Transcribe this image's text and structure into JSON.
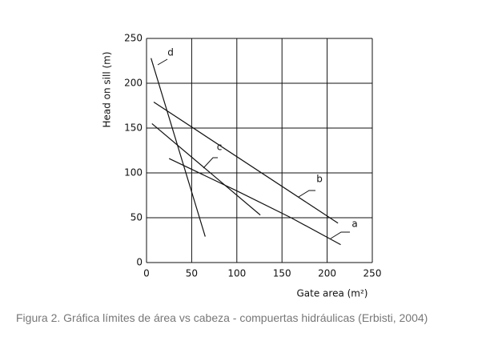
{
  "chart_data": {
    "type": "line",
    "xlabel": "Gate area (m²)",
    "ylabel": "Head on sill (m)",
    "xlim": [
      0,
      250
    ],
    "xticks": [
      0,
      50,
      100,
      150,
      200,
      250
    ],
    "ylim": [
      0,
      250
    ],
    "yticks": [
      0,
      50,
      100,
      150,
      200,
      250
    ],
    "grid": true,
    "color": "#111111",
    "series": [
      {
        "name": "d",
        "x": [
          5,
          65
        ],
        "values": [
          228,
          29
        ]
      },
      {
        "name": "c",
        "x": [
          6,
          126
        ],
        "values": [
          155,
          53
        ]
      },
      {
        "name": "b",
        "x": [
          8,
          212
        ],
        "values": [
          179,
          44
        ]
      },
      {
        "name": "a",
        "x": [
          25,
          100,
          160,
          215
        ],
        "values": [
          116,
          80,
          50,
          20
        ]
      }
    ],
    "caption": "Figura 2. Gráfica límites de área vs cabeza - compuertas hidráulicas (Erbisti, 2004)"
  }
}
